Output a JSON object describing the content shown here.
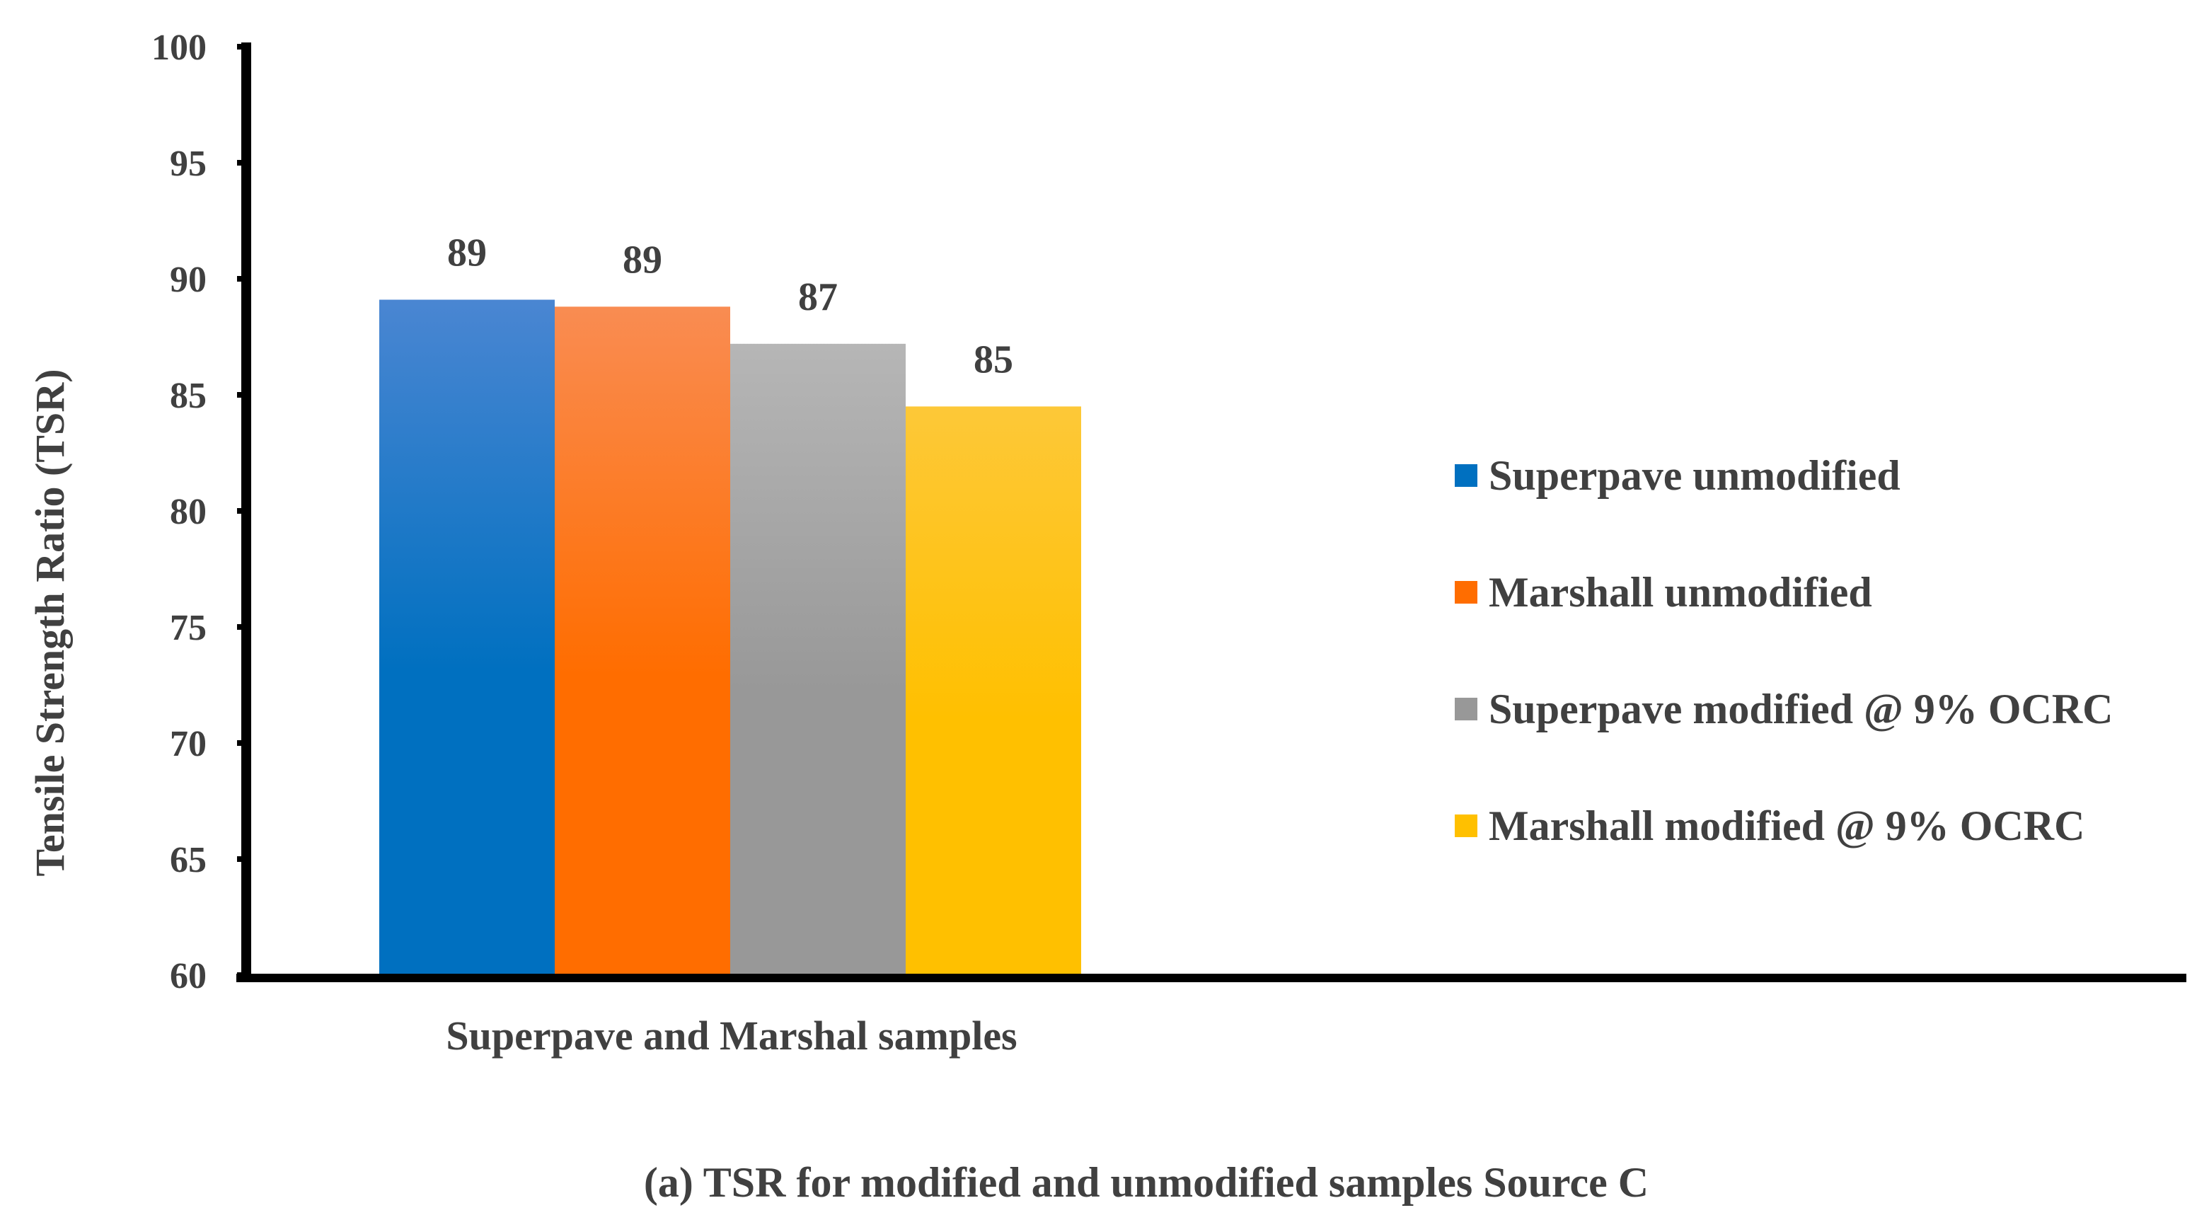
{
  "chart_data": {
    "type": "bar",
    "title": "",
    "caption": "(a) TSR for modified and unmodified samples Source C",
    "xlabel": "Superpave and Marshal samples",
    "ylabel": "Tensile Strength Ratio (TSR)",
    "ylim": [
      60,
      100
    ],
    "yticks": [
      "60",
      "65",
      "70",
      "75",
      "80",
      "85",
      "90",
      "95",
      "100"
    ],
    "grid": false,
    "legend_position": "right",
    "categories": [
      "Superpave and Marshal samples"
    ],
    "series": [
      {
        "name": "Superpave unmodified",
        "values": [
          89.1
        ],
        "label": "89",
        "color": "#0070C0",
        "color_light": "#4A86D2"
      },
      {
        "name": "Marshall unmodified",
        "values": [
          88.8
        ],
        "label": "89",
        "color": "#FF6D00",
        "color_light": "#F98C52"
      },
      {
        "name": "Superpave modified @ 9% OCRC",
        "values": [
          87.2
        ],
        "label": "87",
        "color": "#989898",
        "color_light": "#B6B6B6"
      },
      {
        "name": "Marshall modified @ 9% OCRC",
        "values": [
          84.5
        ],
        "label": "85",
        "color": "#FFC000",
        "color_light": "#FDC838"
      }
    ]
  }
}
